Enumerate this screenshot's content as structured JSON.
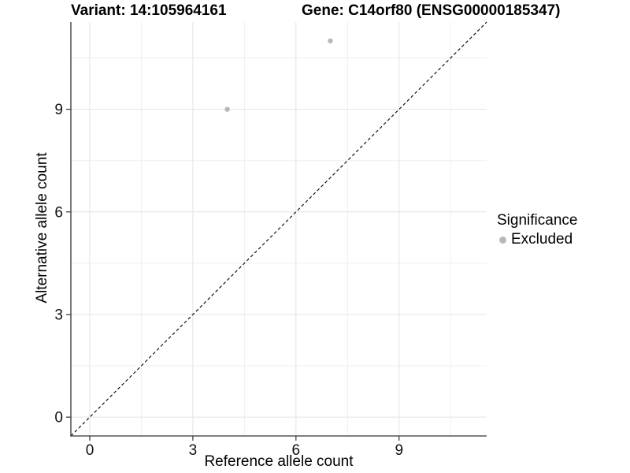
{
  "figure": {
    "title_left": "Variant: 14:105964161",
    "title_right": "Gene: C14orf80 (ENSG00000185347)"
  },
  "chart_data": {
    "type": "scatter",
    "title": "Variant: 14:105964161    Gene: C14orf80 (ENSG00000185347)",
    "xlabel": "Reference allele count",
    "ylabel": "Alternative allele count",
    "xlim": [
      -0.55,
      11.55
    ],
    "ylim": [
      -0.55,
      11.55
    ],
    "x_ticks": [
      0,
      3,
      6,
      9
    ],
    "y_ticks": [
      0,
      3,
      6,
      9
    ],
    "x_minor_ticks": [
      1.5,
      4.5,
      7.5,
      10.5
    ],
    "y_minor_ticks": [
      1.5,
      4.5,
      7.5,
      10.5
    ],
    "grid": true,
    "legend_position": "right",
    "series": [
      {
        "name": "Excluded",
        "color": "#b8b8b8",
        "points": [
          {
            "x": 4,
            "y": 9
          },
          {
            "x": 7,
            "y": 11
          }
        ]
      }
    ],
    "reference_line": {
      "type": "identity",
      "equation": "y = x",
      "style": "dashed",
      "color": "#000000"
    },
    "legend": {
      "title": "Significance",
      "items": [
        {
          "label": "Excluded",
          "color": "#b8b8b8"
        }
      ]
    }
  },
  "colors": {
    "background": "#ffffff",
    "axis_line": "#333333",
    "grid_major": "#e3e3e3",
    "grid_minor": "#efefef",
    "tick_label": "#111111",
    "point": "#b8b8b8"
  }
}
